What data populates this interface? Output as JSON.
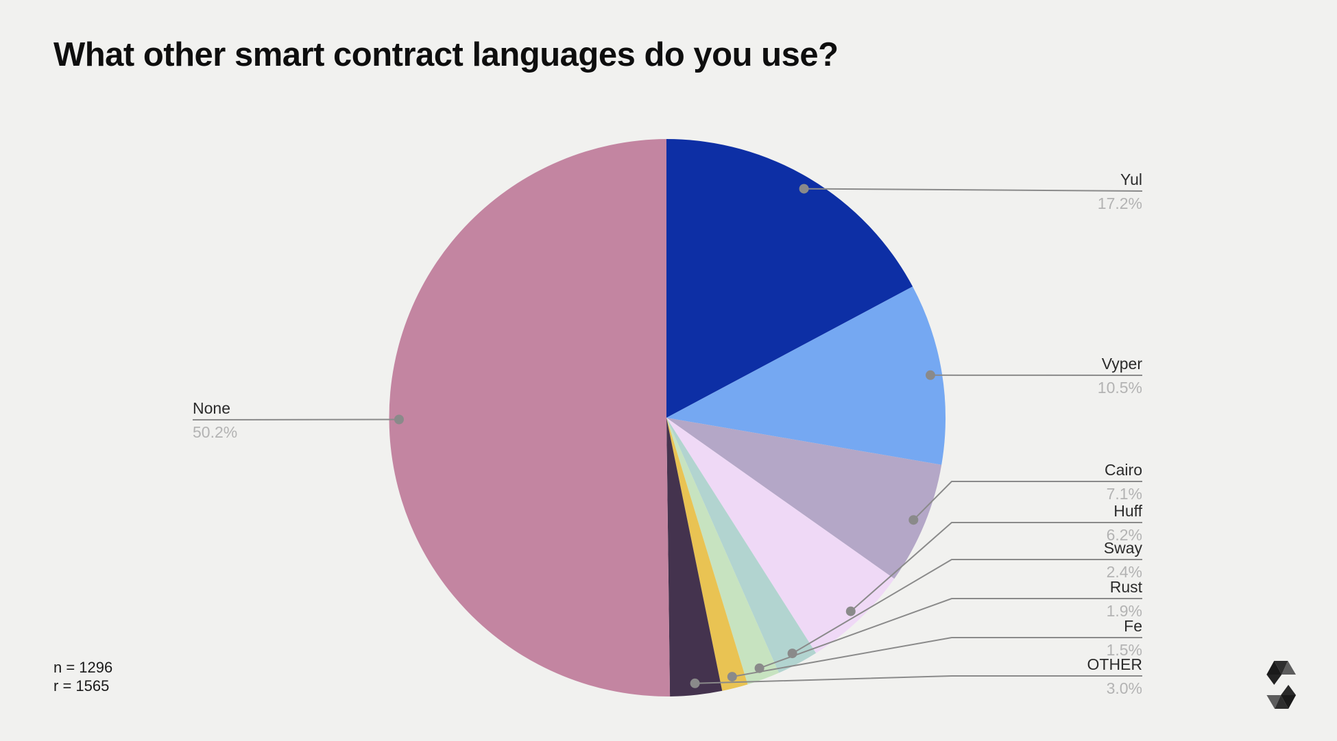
{
  "page": {
    "background_color": "#f1f1ef",
    "title": "What other smart contract languages do you use?",
    "footnote": {
      "line1": "n = 1296",
      "line2": "r = 1565"
    },
    "logo_icon": "solidity-logo"
  },
  "chart_data": {
    "type": "pie",
    "title": "What other smart contract languages do you use?",
    "unit": "percent",
    "start_angle": "12-o'clock, clockwise",
    "legend_position": "callout labels with leader lines (right column + left single)",
    "slices": [
      {
        "label": "Yul",
        "value": 17.2,
        "display": "17.2%",
        "color": "#0d2fa5",
        "callout_side": "right"
      },
      {
        "label": "Vyper",
        "value": 10.5,
        "display": "10.5%",
        "color": "#75a8f2",
        "callout_side": "right"
      },
      {
        "label": "Cairo",
        "value": 7.1,
        "display": "7.1%",
        "color": "#b4a7c7",
        "callout_side": "right"
      },
      {
        "label": "Huff",
        "value": 6.2,
        "display": "6.2%",
        "color": "#efd9f6",
        "callout_side": "right"
      },
      {
        "label": "Sway",
        "value": 2.4,
        "display": "2.4%",
        "color": "#b2d4d0",
        "callout_side": "right"
      },
      {
        "label": "Rust",
        "value": 1.9,
        "display": "1.9%",
        "color": "#c7e3c0",
        "callout_side": "right"
      },
      {
        "label": "Fe",
        "value": 1.5,
        "display": "1.5%",
        "color": "#e9c353",
        "callout_side": "right"
      },
      {
        "label": "OTHER",
        "value": 3.0,
        "display": "3.0%",
        "color": "#44334e",
        "callout_side": "right"
      },
      {
        "label": "None",
        "value": 50.2,
        "display": "50.2%",
        "color": "#c385a1",
        "callout_side": "left"
      }
    ],
    "annotations": {
      "sample_n": "n = 1296",
      "responses_r": "r = 1565"
    },
    "label_text_color": "#2b2b2b",
    "pct_text_color": "#b3b3b3",
    "leader_line_color": "#8a8a8a"
  }
}
